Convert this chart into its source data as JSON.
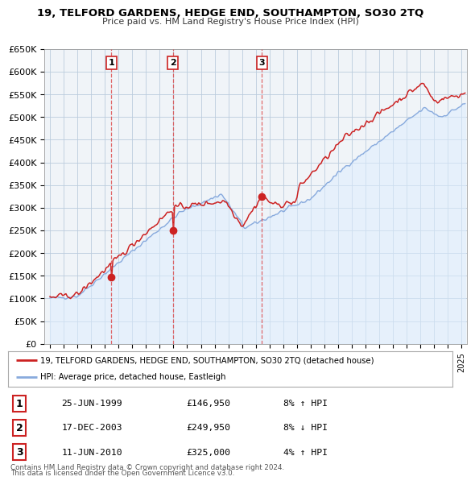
{
  "title": "19, TELFORD GARDENS, HEDGE END, SOUTHAMPTON, SO30 2TQ",
  "subtitle": "Price paid vs. HM Land Registry's House Price Index (HPI)",
  "ylim": [
    0,
    650000
  ],
  "yticks": [
    0,
    50000,
    100000,
    150000,
    200000,
    250000,
    300000,
    350000,
    400000,
    450000,
    500000,
    550000,
    600000,
    650000
  ],
  "ytick_labels": [
    "£0",
    "£50K",
    "£100K",
    "£150K",
    "£200K",
    "£250K",
    "£300K",
    "£350K",
    "£400K",
    "£450K",
    "£500K",
    "£550K",
    "£600K",
    "£650K"
  ],
  "xlim_start": 1994.6,
  "xlim_end": 2025.4,
  "sales": [
    {
      "num": 1,
      "date": "25-JUN-1999",
      "price": 146950,
      "year": 1999.48,
      "hpi_pct": "8%",
      "hpi_dir": "↑"
    },
    {
      "num": 2,
      "date": "17-DEC-2003",
      "price": 249950,
      "year": 2003.96,
      "hpi_pct": "8%",
      "hpi_dir": "↓"
    },
    {
      "num": 3,
      "date": "11-JUN-2010",
      "price": 325000,
      "year": 2010.44,
      "hpi_pct": "4%",
      "hpi_dir": "↑"
    }
  ],
  "legend_entry1": "19, TELFORD GARDENS, HEDGE END, SOUTHAMPTON, SO30 2TQ (detached house)",
  "legend_entry2": "HPI: Average price, detached house, Eastleigh",
  "footnote1": "Contains HM Land Registry data © Crown copyright and database right 2024.",
  "footnote2": "This data is licensed under the Open Government Licence v3.0.",
  "line_color_red": "#cc2222",
  "line_color_blue": "#88aadd",
  "fill_color_blue": "#ddeeff",
  "bg_color": "#ffffff",
  "chart_bg": "#f0f4f8",
  "grid_color": "#bbccdd",
  "sale_marker_color": "#cc2222",
  "vline_color": "#dd4444"
}
